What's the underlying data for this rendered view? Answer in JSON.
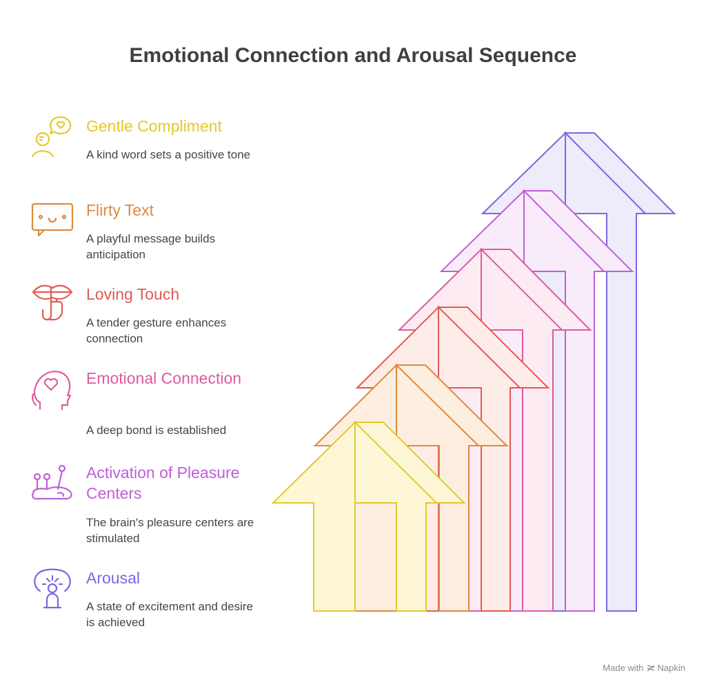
{
  "title": "Emotional Connection and Arousal Sequence",
  "steps": [
    {
      "title": "Gentle Compliment",
      "description": "A kind word sets a positive tone",
      "color": "#e2c929",
      "icon": "speech-heart-person-icon"
    },
    {
      "title": "Flirty Text",
      "description": "A playful message builds anticipation",
      "color": "#dc8a3e",
      "icon": "smiley-chat-bubble-icon"
    },
    {
      "title": "Loving Touch",
      "description": "A tender gesture enhances connection",
      "color": "#e05a52",
      "icon": "lips-hush-hand-icon"
    },
    {
      "title": "Emotional Connection",
      "description": "A deep bond is established",
      "color": "#de5a9e",
      "icon": "head-heart-icon"
    },
    {
      "title": "Activation of Pleasure Centers",
      "description": "The brain's pleasure centers are stimulated",
      "color": "#bf5ed8",
      "icon": "pins-brain-icon"
    },
    {
      "title": "Arousal",
      "description": "A state of excitement and desire is achieved",
      "color": "#7b67e0",
      "icon": "excited-person-icon"
    }
  ],
  "footer": {
    "made_with": "Made with",
    "brand": "Napkin"
  }
}
